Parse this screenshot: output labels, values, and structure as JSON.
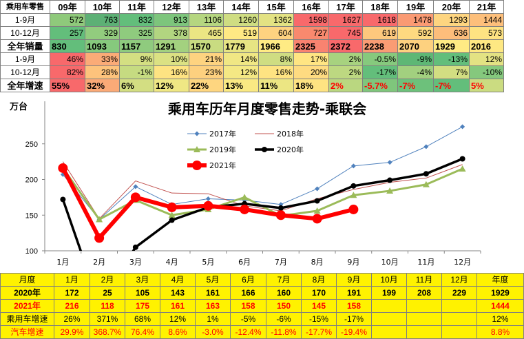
{
  "top_table": {
    "headers": [
      "乘用车零售",
      "09年",
      "10年",
      "11年",
      "12年",
      "13年",
      "14年",
      "15年",
      "16年",
      "17年",
      "18年",
      "19年",
      "20年",
      "21年"
    ],
    "rows": [
      {
        "label": "1-9月",
        "values": [
          "572",
          "763",
          "832",
          "913",
          "1106",
          "1260",
          "1362",
          "1598",
          "1627",
          "1618",
          "1478",
          "1293",
          "1444"
        ],
        "colors": [
          "#8fc97b",
          "#5db075",
          "#63be7b",
          "#7dc57c",
          "#b5d680",
          "#cfdd82",
          "#e3e283",
          "#f8696b",
          "#f8696b",
          "#f8696b",
          "#fa9a73",
          "#fed580",
          "#fdbf7b"
        ]
      },
      {
        "label": "10-12月",
        "values": [
          "257",
          "329",
          "325",
          "378",
          "465",
          "519",
          "604",
          "727",
          "745",
          "619",
          "592",
          "636",
          "573"
        ],
        "colors": [
          "#63be7b",
          "#92cc7e",
          "#8fcb7e",
          "#b2d580",
          "#ebe583",
          "#ffe984",
          "#fed280",
          "#f9896e",
          "#f8696b",
          "#fdc87d",
          "#fed980",
          "#fdbd7b",
          "#fee382"
        ]
      },
      {
        "label": "全年销量",
        "bold": true,
        "values": [
          "830",
          "1093",
          "1157",
          "1291",
          "1570",
          "1779",
          "1966",
          "2325",
          "2372",
          "2238",
          "2070",
          "1929",
          "2016"
        ],
        "colors": [
          "#63be7b",
          "#86c97d",
          "#8fcb7e",
          "#a3d17f",
          "#c9dc81",
          "#e6e483",
          "#ffeb84",
          "#f98370",
          "#f8696b",
          "#fa9c74",
          "#fdd17f",
          "#ffeb84",
          "#fee883"
        ]
      },
      {
        "label": "1-9月",
        "values": [
          "46%",
          "33%",
          "9%",
          "10%",
          "21%",
          "14%",
          "8%",
          "17%",
          "2%",
          "-0.5%",
          "-9%",
          "-13%",
          "12%"
        ],
        "colors": [
          "#f8696b",
          "#fbab77",
          "#d4df82",
          "#dbe183",
          "#fed380",
          "#f0e784",
          "#cfdd82",
          "#ffe583",
          "#a7d27f",
          "#86c97d",
          "#5eb775",
          "#63be7b",
          "#e3e283"
        ]
      },
      {
        "label": "10-12月",
        "values": [
          "82%",
          "28%",
          "-1%",
          "16%",
          "23%",
          "12%",
          "16%",
          "20%",
          "2%",
          "-17%",
          "-4%",
          "7%",
          "-10%"
        ],
        "colors": [
          "#f8696b",
          "#fdc37c",
          "#c6db81",
          "#fee382",
          "#fdd07f",
          "#f4e884",
          "#fee382",
          "#fedb81",
          "#bdd881",
          "#63be7b",
          "#a2d07f",
          "#d2de82",
          "#85c87d"
        ]
      },
      {
        "label": "全年增速",
        "bold": true,
        "values": [
          "55%",
          "32%",
          "6%",
          "12%",
          "22%",
          "13%",
          "11%",
          "18%",
          "2%",
          "-5.7%",
          "-7%",
          "-7%",
          "5%"
        ],
        "colors": [
          "#f8696b",
          "#fbaa77",
          "#d3de82",
          "#efe784",
          "#fed680",
          "#fae983",
          "#ece683",
          "#fee382",
          "#bad780",
          "#7fc67c",
          "#6dc17b",
          "#63be7b",
          "#cbdc81"
        ],
        "red_from": 8
      }
    ]
  },
  "chart_data": {
    "type": "line",
    "title": "乘用车历年月度零售走势-乘联会",
    "ylabel": "万台",
    "categories": [
      "1月",
      "2月",
      "3月",
      "4月",
      "5月",
      "6月",
      "7月",
      "8月",
      "9月",
      "10月",
      "11月",
      "12月"
    ],
    "ylim": [
      100,
      300
    ],
    "yticks": [
      100,
      150,
      200,
      250
    ],
    "legend_position": "top-left",
    "series": [
      {
        "name": "2017年",
        "color": "#4f81bd",
        "values": [
          207,
          144,
          190,
          165,
          173,
          171,
          165,
          187,
          219,
          224,
          246,
          274
        ]
      },
      {
        "name": "2018年",
        "color": "#c0504d",
        "values": [
          225,
          145,
          198,
          181,
          180,
          163,
          156,
          173,
          186,
          196,
          202,
          221
        ]
      },
      {
        "name": "2019年",
        "color": "#9bbb59",
        "values": [
          216,
          144,
          171,
          150,
          158,
          175,
          149,
          156,
          178,
          184,
          193,
          215
        ]
      },
      {
        "name": "2020年",
        "color": "#000000",
        "values": [
          172,
          25,
          105,
          143,
          161,
          166,
          160,
          170,
          191,
          199,
          208,
          229
        ]
      },
      {
        "name": "2021年",
        "color": "#ff0000",
        "values": [
          216,
          118,
          175,
          161,
          163,
          158,
          150,
          145,
          158,
          null,
          null,
          null
        ]
      }
    ]
  },
  "bottom_table": {
    "header": [
      "月度",
      "1月",
      "2月",
      "3月",
      "4月",
      "5月",
      "6月",
      "7月",
      "8月",
      "9月",
      "10月",
      "11月",
      "12月",
      "年度"
    ],
    "rows": [
      {
        "cls": "r-2020",
        "label": "2020年",
        "values": [
          "172",
          "25",
          "105",
          "143",
          "161",
          "166",
          "160",
          "170",
          "191",
          "199",
          "208",
          "229",
          "1929"
        ]
      },
      {
        "cls": "r-2021",
        "label": "2021年",
        "values": [
          "216",
          "118",
          "175",
          "161",
          "163",
          "158",
          "150",
          "145",
          "158",
          "",
          "",
          "",
          "1444"
        ]
      },
      {
        "cls": "r-pv",
        "label": "乘用车增速",
        "values": [
          "26%",
          "371%",
          "68%",
          "12%",
          "1%",
          "-5%",
          "-6%",
          "-15%",
          "-17%",
          "",
          "",
          "",
          "12%"
        ]
      },
      {
        "cls": "r-auto",
        "label": "汽车增速",
        "values": [
          "29.9%",
          "368.7%",
          "76.4%",
          "8.6%",
          "-3.0%",
          "-12.4%",
          "-11.8%",
          "-17.7%",
          "-19.4%",
          "",
          "",
          "",
          "8.8%"
        ]
      }
    ]
  }
}
